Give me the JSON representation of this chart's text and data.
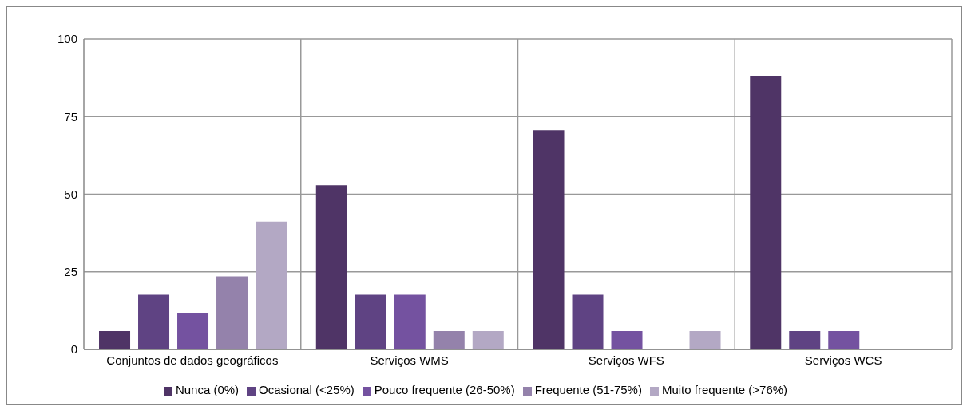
{
  "chart_data": {
    "type": "bar",
    "categories": [
      "Conjuntos de dados geográficos",
      "Serviços WMS",
      "Serviços WFS",
      "Serviços WCS"
    ],
    "series": [
      {
        "name": "Nunca (0%)",
        "color": "#4f3466",
        "values": [
          5.9,
          52.9,
          70.6,
          88.2
        ]
      },
      {
        "name": "Ocasional (<25%)",
        "color": "#5f4383",
        "values": [
          17.6,
          17.6,
          17.6,
          5.9
        ]
      },
      {
        "name": "Pouco frequente (26-50%)",
        "color": "#7452a0",
        "values": [
          11.8,
          17.6,
          5.9,
          5.9
        ]
      },
      {
        "name": "Frequente (51-75%)",
        "color": "#9482ab",
        "values": [
          23.5,
          5.9,
          0,
          0
        ]
      },
      {
        "name": "Muito frequente (>76%)",
        "color": "#b3a8c4",
        "values": [
          41.2,
          5.9,
          5.9,
          0
        ]
      }
    ],
    "ylim": [
      0,
      100
    ],
    "yticks": [
      0,
      25,
      50,
      75,
      100
    ],
    "grid": true,
    "legend": "bottom"
  }
}
